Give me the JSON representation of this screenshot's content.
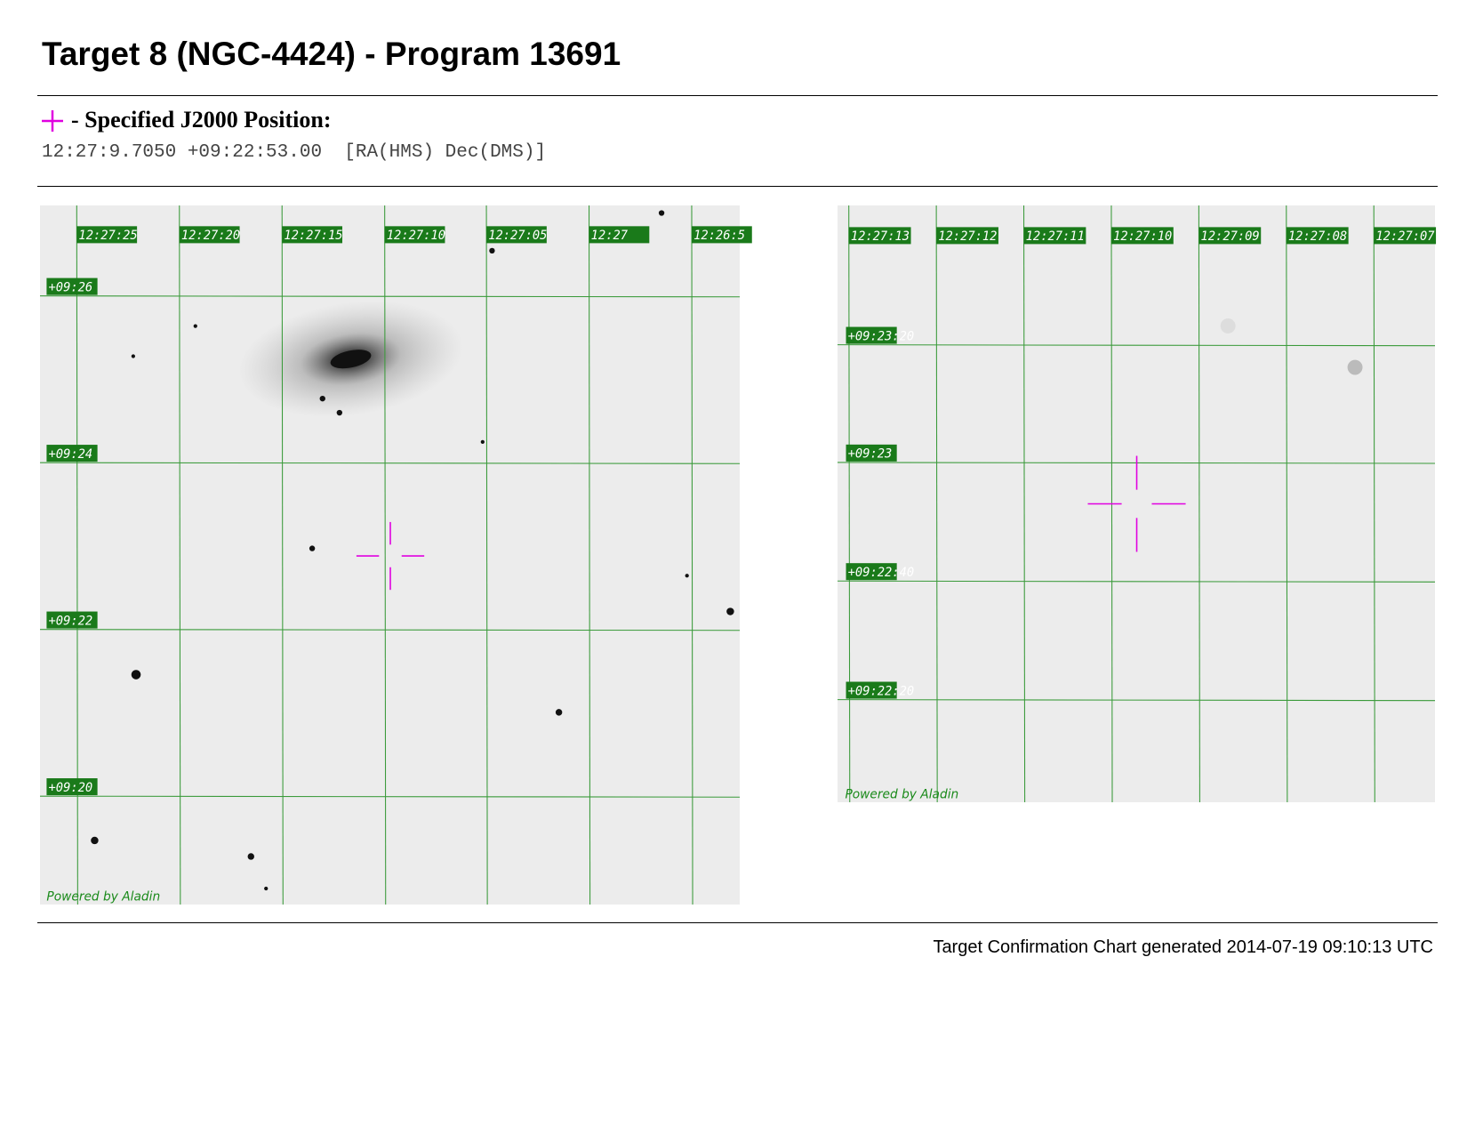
{
  "header": {
    "title": "Target 8 (NGC-4424) - Program 13691"
  },
  "position": {
    "label": "- Specified J2000 Position:",
    "coords": "12:27:9.7050 +09:22:53.00  [RA(HMS) Dec(DMS)]"
  },
  "left_chart": {
    "ra_labels": [
      "12:27:25",
      "12:27:20",
      "12:27:15",
      "12:27:10",
      "12:27:05",
      "12:27",
      "12:26:5"
    ],
    "dec_labels": [
      "+09:26",
      "+09:24",
      "+09:22",
      "+09:20"
    ],
    "credit": "Powered by Aladin"
  },
  "right_chart": {
    "ra_labels": [
      "12:27:13",
      "12:27:12",
      "12:27:11",
      "12:27:10",
      "12:27:09",
      "12:27:08",
      "12:27:07"
    ],
    "dec_labels": [
      "+09:23:20",
      "+09:23",
      "+09:22:40",
      "+09:22:20"
    ],
    "credit": "Powered by Aladin"
  },
  "footer": {
    "text": "Target Confirmation Chart generated 2014-07-19 09:10:13 UTC"
  }
}
